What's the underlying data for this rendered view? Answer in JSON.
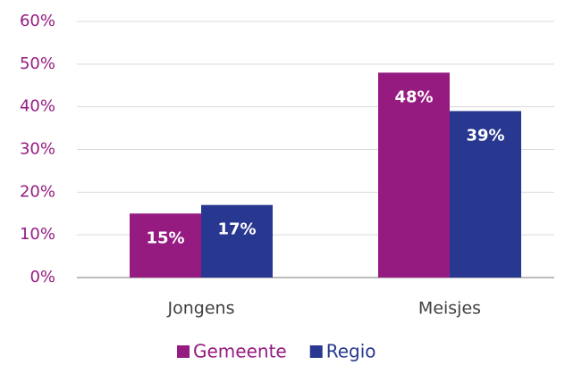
{
  "chart_data": {
    "type": "bar",
    "categories": [
      "Jongens",
      "Meisjes"
    ],
    "series": [
      {
        "name": "Gemeente",
        "color": "#951b81",
        "values": [
          15,
          48
        ],
        "value_labels": [
          "15%",
          "48%"
        ]
      },
      {
        "name": "Regio",
        "color": "#283891",
        "values": [
          17,
          39
        ],
        "value_labels": [
          "17%",
          "39%"
        ]
      }
    ],
    "ylim": [
      0,
      60
    ],
    "yticks": [
      {
        "value": 0,
        "label": "0%"
      },
      {
        "value": 10,
        "label": "10%"
      },
      {
        "value": 20,
        "label": "20%"
      },
      {
        "value": 30,
        "label": "30%"
      },
      {
        "value": 40,
        "label": "40%"
      },
      {
        "value": 50,
        "label": "50%"
      },
      {
        "value": 60,
        "label": "60%"
      }
    ],
    "grid": true,
    "legend": "bottom"
  }
}
